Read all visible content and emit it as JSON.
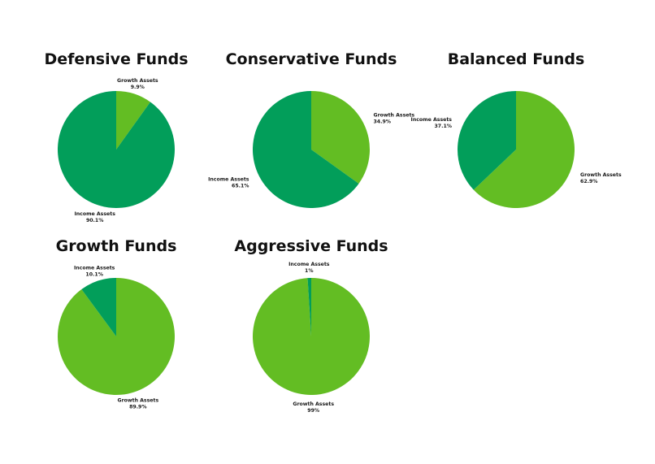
{
  "colors": {
    "income": "#029e5a",
    "growth": "#63bd23",
    "background": "#ffffff"
  },
  "chart_data": [
    {
      "type": "pie",
      "title": "Defensive Funds",
      "slices": [
        {
          "label": "Growth Assets",
          "value": 9.9,
          "display": "9.9%",
          "color": "#63bd23"
        },
        {
          "label": "Income Assets",
          "value": 90.1,
          "display": "90.1%",
          "color": "#029e5a"
        }
      ]
    },
    {
      "type": "pie",
      "title": "Conservative Funds",
      "slices": [
        {
          "label": "Growth Assets",
          "value": 34.9,
          "display": "34.9%",
          "color": "#63bd23"
        },
        {
          "label": "Income Assets",
          "value": 65.1,
          "display": "65.1%",
          "color": "#029e5a"
        }
      ]
    },
    {
      "type": "pie",
      "title": "Balanced Funds",
      "slices": [
        {
          "label": "Growth Assets",
          "value": 62.9,
          "display": "62.9%",
          "color": "#63bd23"
        },
        {
          "label": "Income Assets",
          "value": 37.1,
          "display": "37.1%",
          "color": "#029e5a"
        }
      ]
    },
    {
      "type": "pie",
      "title": "Growth Funds",
      "slices": [
        {
          "label": "Growth Assets",
          "value": 89.9,
          "display": "89.9%",
          "color": "#63bd23"
        },
        {
          "label": "Income Assets",
          "value": 10.1,
          "display": "10.1%",
          "color": "#029e5a"
        }
      ]
    },
    {
      "type": "pie",
      "title": "Aggressive Funds",
      "slices": [
        {
          "label": "Growth Assets",
          "value": 99,
          "display": "99%",
          "color": "#63bd23"
        },
        {
          "label": "Income Assets",
          "value": 1,
          "display": "1%",
          "color": "#029e5a"
        }
      ]
    }
  ]
}
